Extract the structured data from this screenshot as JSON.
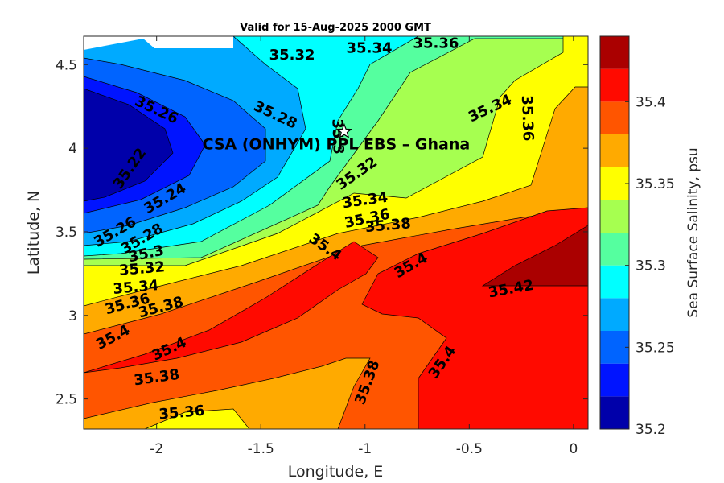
{
  "chart_data": {
    "type": "contour",
    "title": "Valid for 15-Aug-2025 2000 GMT",
    "xlabel": "Longitude, E",
    "ylabel": "Latitude, N",
    "xlim": [
      -2.35,
      0.07
    ],
    "ylim": [
      2.32,
      4.67
    ],
    "xticks": [
      -2,
      -1.5,
      -1,
      -0.5,
      0
    ],
    "xtick_labels": [
      "-2",
      "-1.5",
      "-1",
      "-0.5",
      "0"
    ],
    "yticks": [
      2.5,
      3,
      3.5,
      4,
      4.5
    ],
    "ytick_labels": [
      "2.5",
      "3",
      "3.5",
      "4",
      "4.5"
    ],
    "grid": false,
    "colorbar": {
      "label": "Sea Surface Salinity, psu",
      "min": 35.2,
      "max": 35.44,
      "ticks": [
        35.2,
        35.25,
        35.3,
        35.35,
        35.4
      ],
      "tick_labels": [
        "35.2",
        "35.25",
        "35.3",
        "35.35",
        "35.4"
      ],
      "levels": [
        35.2,
        35.22,
        35.24,
        35.26,
        35.28,
        35.3,
        35.32,
        35.34,
        35.36,
        35.38,
        35.4,
        35.42,
        35.44
      ],
      "colors": [
        "#0000aa",
        "#0014ff",
        "#0064ff",
        "#00aaff",
        "#00ffff",
        "#55ff9f",
        "#a6ff50",
        "#ffff00",
        "#ffaa00",
        "#ff5500",
        "#ff0a00",
        "#aa0000"
      ]
    },
    "site": {
      "label": "CSA (ONHYM) PPL EBS  – Ghana",
      "marker": "star",
      "lon": -1.1,
      "lat": 4.1
    },
    "contour_labels": [
      {
        "text": "35.26",
        "lon": -2.0,
        "lat": 4.23,
        "angle": 25
      },
      {
        "text": "35.28",
        "lon": -1.43,
        "lat": 4.2,
        "angle": 25
      },
      {
        "text": "35.32",
        "lon": -1.35,
        "lat": 4.56,
        "angle": 0
      },
      {
        "text": "35.34",
        "lon": -0.98,
        "lat": 4.6,
        "angle": 0
      },
      {
        "text": "35.36",
        "lon": -0.66,
        "lat": 4.63,
        "angle": 0
      },
      {
        "text": "35.34",
        "lon": -0.4,
        "lat": 4.24,
        "angle": -25
      },
      {
        "text": "35.36",
        "lon": -0.22,
        "lat": 4.18,
        "angle": 88
      },
      {
        "text": "35.3",
        "lon": -1.13,
        "lat": 4.07,
        "angle": 88
      },
      {
        "text": "35.22",
        "lon": -2.13,
        "lat": 3.88,
        "angle": -55
      },
      {
        "text": "35.24",
        "lon": -1.96,
        "lat": 3.7,
        "angle": -30
      },
      {
        "text": "35.32",
        "lon": -1.04,
        "lat": 3.85,
        "angle": -35
      },
      {
        "text": "35.34",
        "lon": -1.0,
        "lat": 3.69,
        "angle": -8
      },
      {
        "text": "35.36",
        "lon": -0.99,
        "lat": 3.58,
        "angle": -12
      },
      {
        "text": "35.38",
        "lon": -0.89,
        "lat": 3.54,
        "angle": -5
      },
      {
        "text": "35.26",
        "lon": -2.2,
        "lat": 3.5,
        "angle": -30
      },
      {
        "text": "35.28",
        "lon": -2.07,
        "lat": 3.46,
        "angle": -30
      },
      {
        "text": "35.3",
        "lon": -2.05,
        "lat": 3.37,
        "angle": -12
      },
      {
        "text": "35.32",
        "lon": -2.07,
        "lat": 3.28,
        "angle": -5
      },
      {
        "text": "35.34",
        "lon": -2.1,
        "lat": 3.17,
        "angle": -5
      },
      {
        "text": "35.36",
        "lon": -2.14,
        "lat": 3.07,
        "angle": -15
      },
      {
        "text": "35.38",
        "lon": -1.98,
        "lat": 3.05,
        "angle": -15
      },
      {
        "text": "35.4",
        "lon": -1.19,
        "lat": 3.41,
        "angle": 35
      },
      {
        "text": "35.4",
        "lon": -0.78,
        "lat": 3.3,
        "angle": -30
      },
      {
        "text": "35.42",
        "lon": -0.3,
        "lat": 3.16,
        "angle": -10
      },
      {
        "text": "35.4",
        "lon": -2.21,
        "lat": 2.87,
        "angle": -28
      },
      {
        "text": "35.4",
        "lon": -1.94,
        "lat": 2.8,
        "angle": -25
      },
      {
        "text": "35.38",
        "lon": -2.0,
        "lat": 2.63,
        "angle": -8
      },
      {
        "text": "35.38",
        "lon": -0.99,
        "lat": 2.6,
        "angle": -70
      },
      {
        "text": "35.4",
        "lon": -0.63,
        "lat": 2.72,
        "angle": -55
      },
      {
        "text": "35.36",
        "lon": -1.88,
        "lat": 2.42,
        "angle": -5
      }
    ]
  }
}
